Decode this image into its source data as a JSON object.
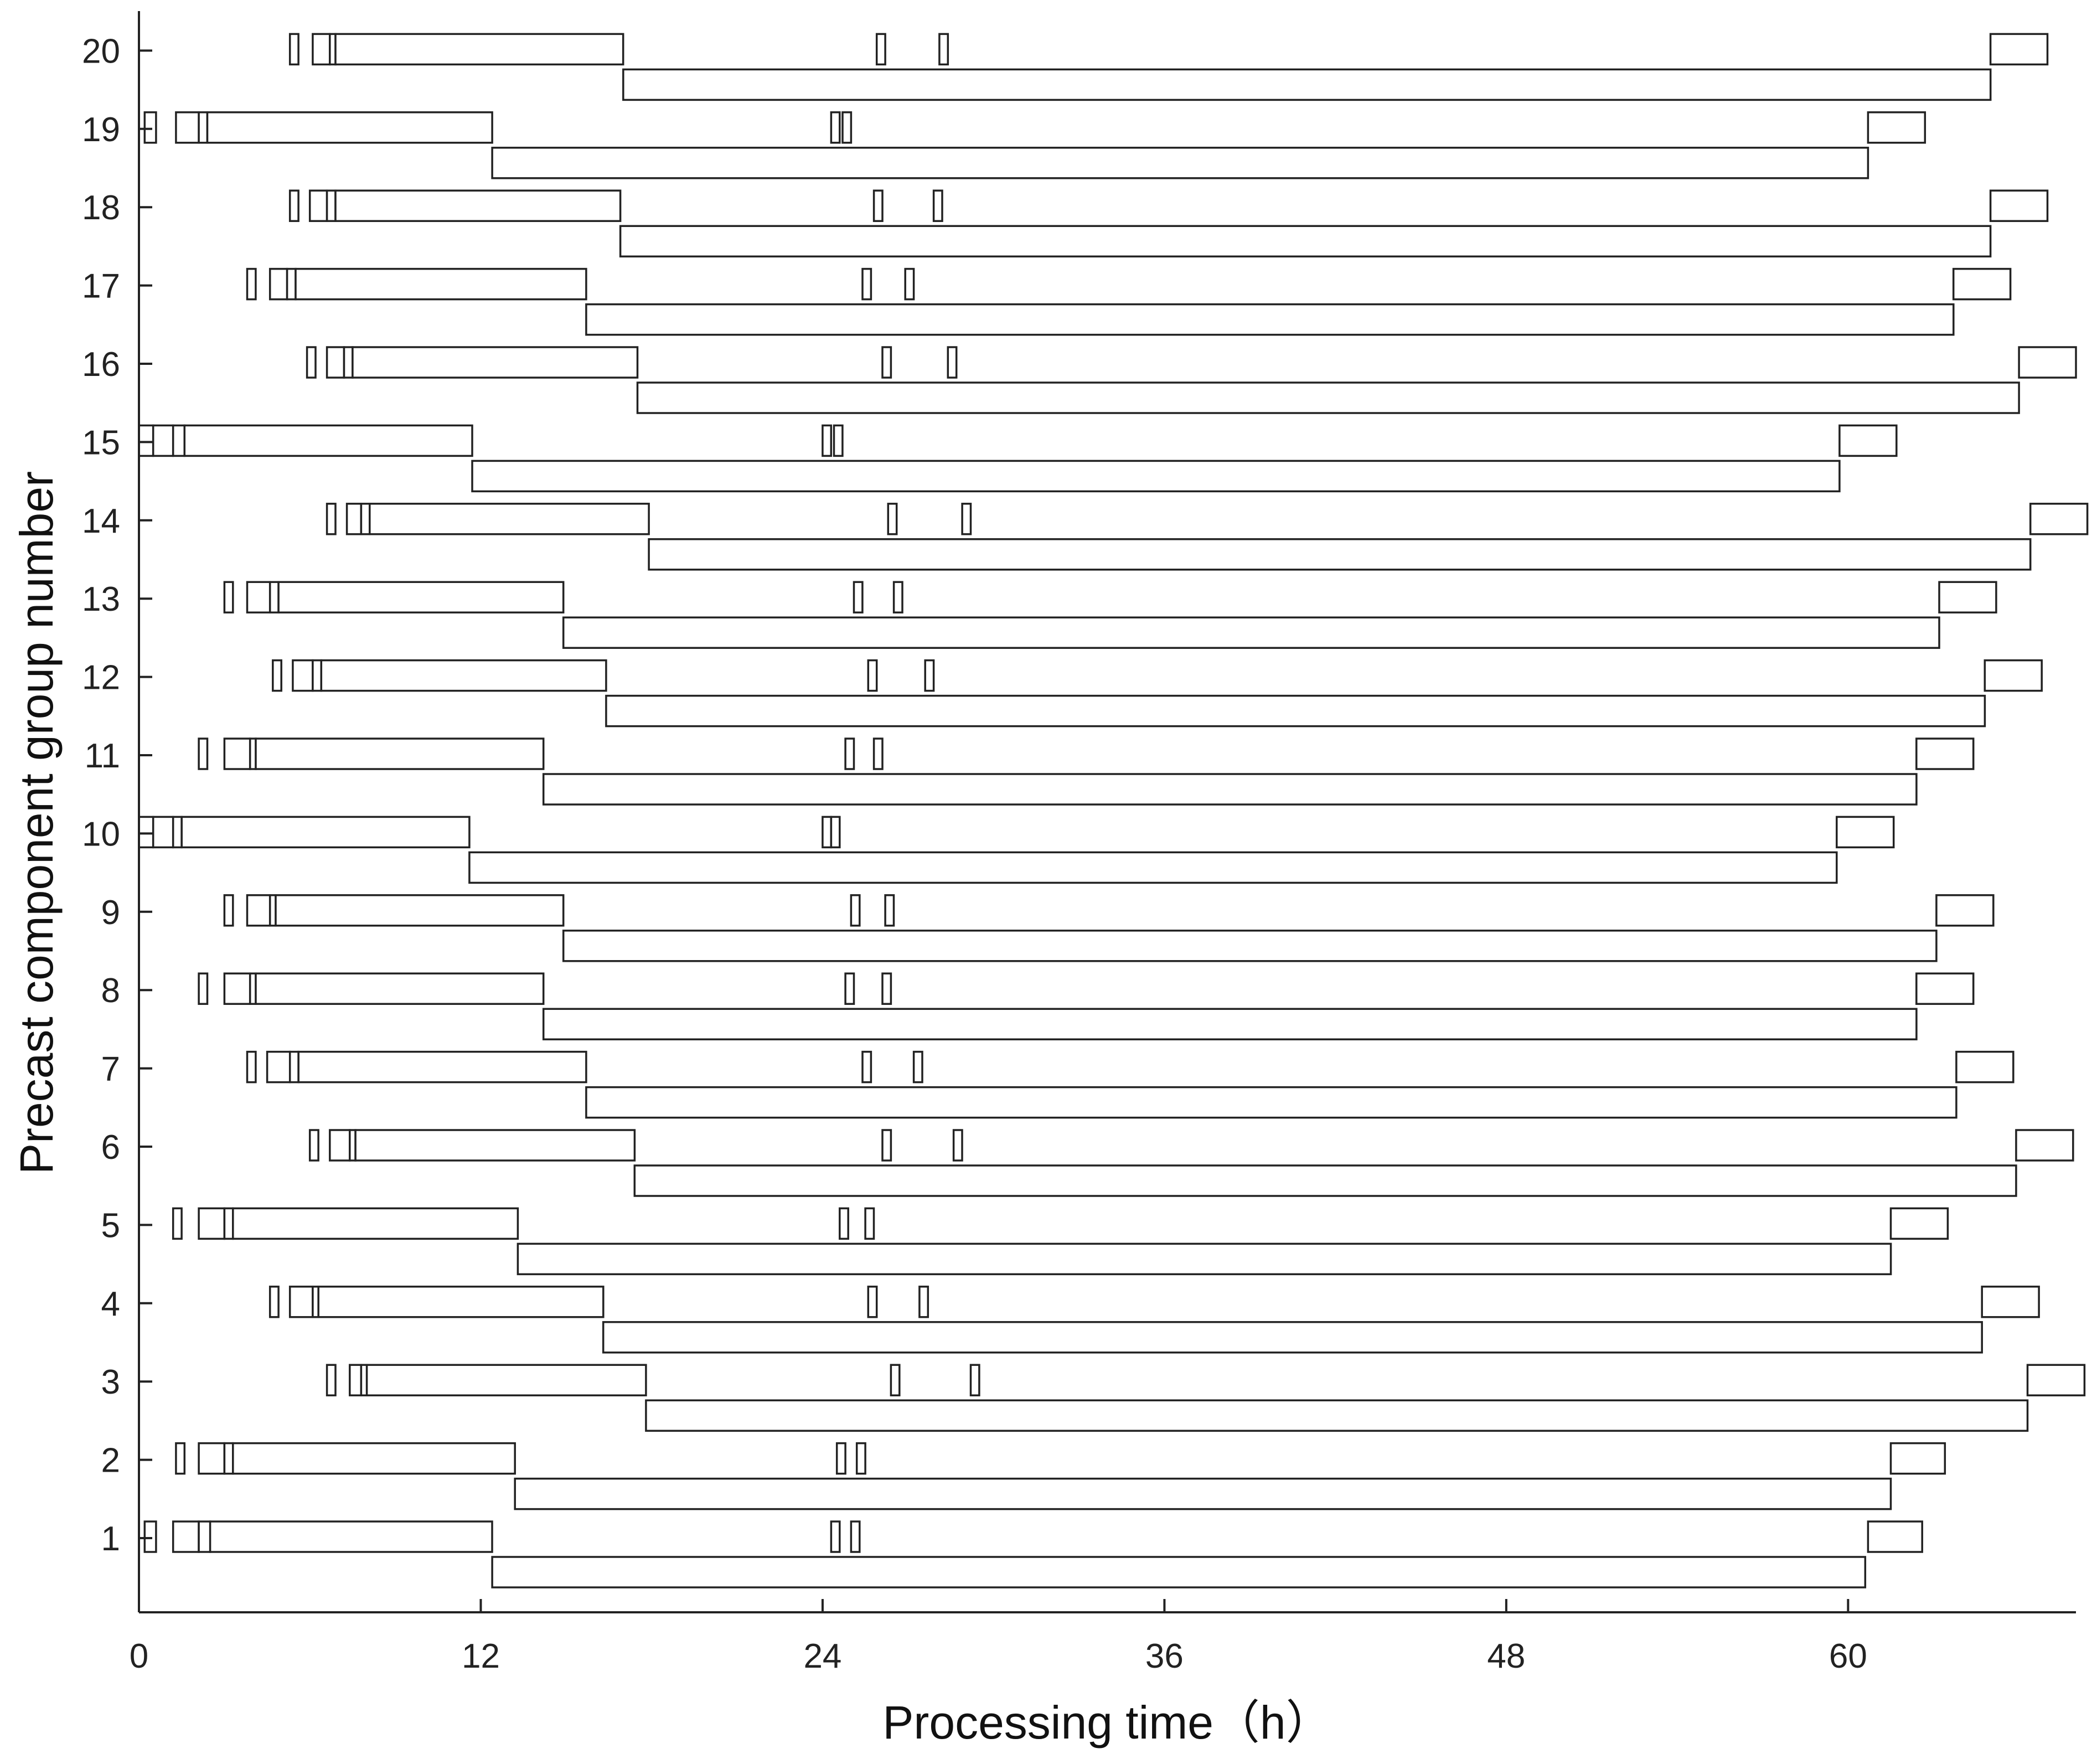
{
  "chart_data": {
    "type": "gantt",
    "xlabel": "Processing time（h）",
    "ylabel": "Precast component group number",
    "xlim": [
      0,
      68
    ],
    "xticks": [
      0,
      12,
      24,
      36,
      48,
      60
    ],
    "yticks": [
      1,
      2,
      3,
      4,
      5,
      6,
      7,
      8,
      9,
      10,
      11,
      12,
      13,
      14,
      15,
      16,
      17,
      18,
      19,
      20
    ],
    "grid": false,
    "rows": [
      {
        "group": 1,
        "row": "upper",
        "tasks": [
          [
            0.2,
            0.6
          ],
          [
            1.2,
            2.1
          ],
          [
            2.1,
            2.5
          ],
          [
            2.5,
            12.4
          ],
          [
            24.3,
            24.6
          ],
          [
            25.0,
            25.3
          ],
          [
            60.7,
            62.6
          ]
        ]
      },
      {
        "group": 1,
        "row": "lower",
        "tasks": [
          [
            12.4,
            60.6
          ]
        ]
      },
      {
        "group": 2,
        "row": "upper",
        "tasks": [
          [
            1.3,
            1.6
          ],
          [
            2.1,
            3.0
          ],
          [
            3.0,
            3.3
          ],
          [
            3.3,
            13.2
          ],
          [
            24.5,
            24.8
          ],
          [
            25.2,
            25.5
          ],
          [
            61.5,
            63.4
          ]
        ]
      },
      {
        "group": 2,
        "row": "lower",
        "tasks": [
          [
            13.2,
            61.5
          ]
        ]
      },
      {
        "group": 3,
        "row": "upper",
        "tasks": [
          [
            6.6,
            6.9
          ],
          [
            7.4,
            7.8
          ],
          [
            7.8,
            8.0
          ],
          [
            8.0,
            17.8
          ],
          [
            26.4,
            26.7
          ],
          [
            29.2,
            29.5
          ],
          [
            66.3,
            68.3
          ]
        ]
      },
      {
        "group": 3,
        "row": "lower",
        "tasks": [
          [
            17.8,
            66.3
          ]
        ]
      },
      {
        "group": 4,
        "row": "upper",
        "tasks": [
          [
            4.6,
            4.9
          ],
          [
            5.3,
            6.1
          ],
          [
            6.1,
            6.3
          ],
          [
            6.3,
            16.3
          ],
          [
            25.6,
            25.9
          ],
          [
            27.4,
            27.7
          ],
          [
            64.7,
            66.7
          ]
        ]
      },
      {
        "group": 4,
        "row": "lower",
        "tasks": [
          [
            16.3,
            64.7
          ]
        ]
      },
      {
        "group": 5,
        "row": "upper",
        "tasks": [
          [
            1.2,
            1.5
          ],
          [
            2.1,
            3.0
          ],
          [
            3.0,
            3.3
          ],
          [
            3.3,
            13.3
          ],
          [
            24.6,
            24.9
          ],
          [
            25.5,
            25.8
          ],
          [
            61.5,
            63.5
          ]
        ]
      },
      {
        "group": 5,
        "row": "lower",
        "tasks": [
          [
            13.3,
            61.5
          ]
        ]
      },
      {
        "group": 6,
        "row": "upper",
        "tasks": [
          [
            6.0,
            6.3
          ],
          [
            6.7,
            7.4
          ],
          [
            7.4,
            7.6
          ],
          [
            7.6,
            17.4
          ],
          [
            26.1,
            26.4
          ],
          [
            28.6,
            28.9
          ],
          [
            65.9,
            67.9
          ]
        ]
      },
      {
        "group": 6,
        "row": "lower",
        "tasks": [
          [
            17.4,
            65.9
          ]
        ]
      },
      {
        "group": 7,
        "row": "upper",
        "tasks": [
          [
            3.8,
            4.1
          ],
          [
            4.5,
            5.3
          ],
          [
            5.3,
            5.6
          ],
          [
            5.6,
            15.7
          ],
          [
            25.4,
            25.7
          ],
          [
            27.2,
            27.5
          ],
          [
            63.8,
            65.8
          ]
        ]
      },
      {
        "group": 7,
        "row": "lower",
        "tasks": [
          [
            15.7,
            63.8
          ]
        ]
      },
      {
        "group": 8,
        "row": "upper",
        "tasks": [
          [
            2.1,
            2.4
          ],
          [
            3.0,
            3.9
          ],
          [
            3.9,
            4.1
          ],
          [
            4.1,
            14.2
          ],
          [
            24.8,
            25.1
          ],
          [
            26.1,
            26.4
          ],
          [
            62.4,
            64.4
          ]
        ]
      },
      {
        "group": 8,
        "row": "lower",
        "tasks": [
          [
            14.2,
            62.4
          ]
        ]
      },
      {
        "group": 9,
        "row": "upper",
        "tasks": [
          [
            3.0,
            3.3
          ],
          [
            3.8,
            4.6
          ],
          [
            4.6,
            4.8
          ],
          [
            4.8,
            14.9
          ],
          [
            25.0,
            25.3
          ],
          [
            26.2,
            26.5
          ],
          [
            63.1,
            65.1
          ]
        ]
      },
      {
        "group": 9,
        "row": "lower",
        "tasks": [
          [
            14.9,
            63.1
          ]
        ]
      },
      {
        "group": 10,
        "row": "upper",
        "tasks": [
          [
            0.0,
            0.5
          ],
          [
            0.5,
            1.2
          ],
          [
            1.2,
            1.5
          ],
          [
            1.5,
            11.6
          ],
          [
            24.0,
            24.3
          ],
          [
            24.3,
            24.6
          ],
          [
            59.6,
            61.6
          ]
        ]
      },
      {
        "group": 10,
        "row": "lower",
        "tasks": [
          [
            11.6,
            59.6
          ]
        ]
      },
      {
        "group": 11,
        "row": "upper",
        "tasks": [
          [
            2.1,
            2.4
          ],
          [
            3.0,
            3.9
          ],
          [
            3.9,
            4.1
          ],
          [
            4.1,
            14.2
          ],
          [
            24.8,
            25.1
          ],
          [
            25.8,
            26.1
          ],
          [
            62.4,
            64.4
          ]
        ]
      },
      {
        "group": 11,
        "row": "lower",
        "tasks": [
          [
            14.2,
            62.4
          ]
        ]
      },
      {
        "group": 12,
        "row": "upper",
        "tasks": [
          [
            4.7,
            5.0
          ],
          [
            5.4,
            6.1
          ],
          [
            6.1,
            6.4
          ],
          [
            6.4,
            16.4
          ],
          [
            25.6,
            25.9
          ],
          [
            27.6,
            27.9
          ],
          [
            64.8,
            66.8
          ]
        ]
      },
      {
        "group": 12,
        "row": "lower",
        "tasks": [
          [
            16.4,
            64.8
          ]
        ]
      },
      {
        "group": 13,
        "row": "upper",
        "tasks": [
          [
            3.0,
            3.3
          ],
          [
            3.8,
            4.6
          ],
          [
            4.6,
            4.9
          ],
          [
            4.9,
            14.9
          ],
          [
            25.1,
            25.4
          ],
          [
            26.5,
            26.8
          ],
          [
            63.2,
            65.2
          ]
        ]
      },
      {
        "group": 13,
        "row": "lower",
        "tasks": [
          [
            14.9,
            63.2
          ]
        ]
      },
      {
        "group": 14,
        "row": "upper",
        "tasks": [
          [
            6.6,
            6.9
          ],
          [
            7.3,
            7.8
          ],
          [
            7.8,
            8.1
          ],
          [
            8.1,
            17.9
          ],
          [
            26.3,
            26.6
          ],
          [
            28.9,
            29.2
          ],
          [
            66.4,
            68.4
          ]
        ]
      },
      {
        "group": 14,
        "row": "lower",
        "tasks": [
          [
            17.9,
            66.4
          ]
        ]
      },
      {
        "group": 15,
        "row": "upper",
        "tasks": [
          [
            0.0,
            0.5
          ],
          [
            0.5,
            1.2
          ],
          [
            1.2,
            1.6
          ],
          [
            1.6,
            11.7
          ],
          [
            24.0,
            24.3
          ],
          [
            24.4,
            24.7
          ],
          [
            59.7,
            61.7
          ]
        ]
      },
      {
        "group": 15,
        "row": "lower",
        "tasks": [
          [
            11.7,
            59.7
          ]
        ]
      },
      {
        "group": 16,
        "row": "upper",
        "tasks": [
          [
            5.9,
            6.2
          ],
          [
            6.6,
            7.2
          ],
          [
            7.2,
            7.5
          ],
          [
            7.5,
            17.5
          ],
          [
            26.1,
            26.4
          ],
          [
            28.4,
            28.7
          ],
          [
            66.0,
            68.0
          ]
        ]
      },
      {
        "group": 16,
        "row": "lower",
        "tasks": [
          [
            17.5,
            66.0
          ]
        ]
      },
      {
        "group": 17,
        "row": "upper",
        "tasks": [
          [
            3.8,
            4.1
          ],
          [
            4.6,
            5.2
          ],
          [
            5.2,
            5.5
          ],
          [
            5.5,
            15.7
          ],
          [
            25.4,
            25.7
          ],
          [
            26.9,
            27.2
          ],
          [
            63.7,
            65.7
          ]
        ]
      },
      {
        "group": 17,
        "row": "lower",
        "tasks": [
          [
            15.7,
            63.7
          ]
        ]
      },
      {
        "group": 18,
        "row": "upper",
        "tasks": [
          [
            5.3,
            5.6
          ],
          [
            6.0,
            6.6
          ],
          [
            6.6,
            6.9
          ],
          [
            6.9,
            16.9
          ],
          [
            25.8,
            26.1
          ],
          [
            27.9,
            28.2
          ],
          [
            65.0,
            67.0
          ]
        ]
      },
      {
        "group": 18,
        "row": "lower",
        "tasks": [
          [
            16.9,
            65.0
          ]
        ]
      },
      {
        "group": 19,
        "row": "upper",
        "tasks": [
          [
            0.2,
            0.6
          ],
          [
            1.3,
            2.1
          ],
          [
            2.1,
            2.4
          ],
          [
            2.4,
            12.4
          ],
          [
            24.3,
            24.6
          ],
          [
            24.7,
            25.0
          ],
          [
            60.7,
            62.7
          ]
        ]
      },
      {
        "group": 19,
        "row": "lower",
        "tasks": [
          [
            12.4,
            60.7
          ]
        ]
      },
      {
        "group": 20,
        "row": "upper",
        "tasks": [
          [
            5.3,
            5.6
          ],
          [
            6.1,
            6.7
          ],
          [
            6.7,
            6.9
          ],
          [
            6.9,
            17.0
          ],
          [
            25.9,
            26.2
          ],
          [
            28.1,
            28.4
          ],
          [
            65.0,
            67.0
          ]
        ]
      },
      {
        "group": 20,
        "row": "lower",
        "tasks": [
          [
            17.0,
            65.0
          ]
        ]
      }
    ]
  }
}
